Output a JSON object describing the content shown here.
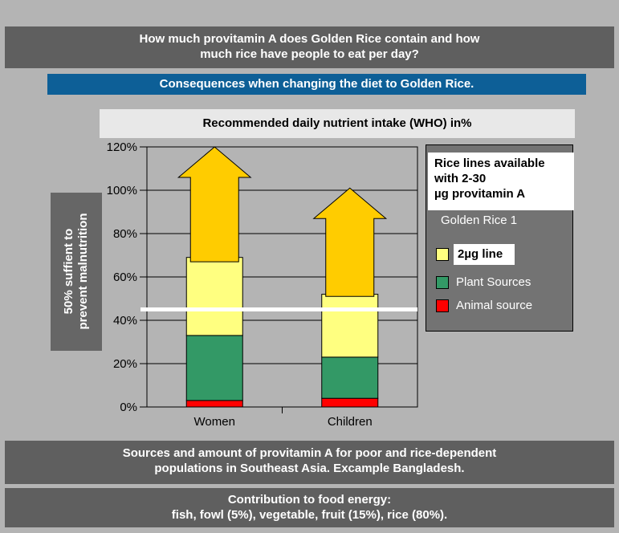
{
  "header": {
    "title_lines": [
      "How much provitamin A does Golden Rice contain and how",
      "much rice have people to eat per day?"
    ],
    "subtitle": "Consequences when changing the diet to Golden Rice."
  },
  "chart_data": {
    "type": "bar",
    "stacked": true,
    "title": "Recommended daily nutrient intake (WHO) in%",
    "categories": [
      "Women",
      "Children"
    ],
    "series": [
      {
        "name": "Animal source",
        "values": [
          3,
          4
        ],
        "color": "#ff0000"
      },
      {
        "name": "Plant Sources",
        "values": [
          30,
          19
        ],
        "color": "#339966"
      },
      {
        "name": "2µg line",
        "values": [
          36,
          29
        ],
        "color": "#ffff80"
      }
    ],
    "arrows": [
      {
        "category": "Women",
        "from": 67,
        "to": 120,
        "color": "#ffcc00"
      },
      {
        "category": "Children",
        "from": 51,
        "to": 101,
        "color": "#ffcc00"
      }
    ],
    "threshold": 45,
    "ylim": [
      0,
      120
    ],
    "yticks": [
      0,
      20,
      40,
      60,
      80,
      100,
      120
    ],
    "ytick_labels": [
      "0%",
      "20%",
      "40%",
      "60%",
      "80%",
      "100%",
      "120%"
    ],
    "ylabel_lines": [
      "50% suffient to",
      "prevent malnutrition"
    ],
    "grid": true,
    "legend": {
      "position": "right",
      "heading_lines": [
        "Rice lines available",
        "with 2-30",
        "µg provitamin A"
      ],
      "subheading": "Golden Rice 1",
      "entries": [
        {
          "label": "2µg line",
          "color": "#ffff80"
        },
        {
          "label": "Plant Sources",
          "color": "#339966"
        },
        {
          "label": "Animal source",
          "color": "#ff0000"
        }
      ]
    }
  },
  "footer": {
    "sources_lines": [
      "Sources and amount of provitamin A for poor and rice-dependent",
      "populations in Southeast Asia. Excample Bangladesh."
    ],
    "energy_lines": [
      "Contribution to food energy:",
      "fish, fowl (5%), vegetable, fruit (15%), rice (80%)."
    ]
  }
}
